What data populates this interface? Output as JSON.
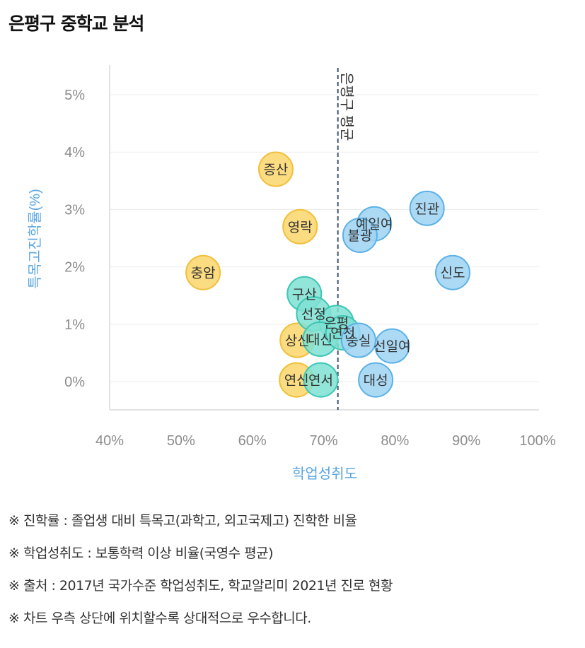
{
  "title": "은평구 중학교 분석",
  "chart_data": {
    "type": "scatter",
    "xlabel": "학업성취도",
    "ylabel": "특목고진학률(%)",
    "xlim": [
      0.4,
      1.0
    ],
    "ylim": [
      -0.005,
      0.05
    ],
    "xticks": [
      "40%",
      "50%",
      "60%",
      "70%",
      "80%",
      "90%",
      "100%"
    ],
    "yticks": [
      "0%",
      "1%",
      "2%",
      "3%",
      "4%",
      "5%"
    ],
    "reference_line": {
      "x": 0.72,
      "label": "은평구 평균"
    },
    "groups": [
      {
        "name": "yellow",
        "color": "#fbd66b",
        "stroke": "#f1bf3a"
      },
      {
        "name": "teal",
        "color": "#7fe0d2",
        "stroke": "#3cc6b5"
      },
      {
        "name": "blue",
        "color": "#9dd3f3",
        "stroke": "#5bb1e6"
      }
    ],
    "points": [
      {
        "name": "증산",
        "x": 0.633,
        "y": 0.037,
        "group": "yellow"
      },
      {
        "name": "영락",
        "x": 0.667,
        "y": 0.027,
        "group": "yellow"
      },
      {
        "name": "충암",
        "x": 0.531,
        "y": 0.019,
        "group": "yellow"
      },
      {
        "name": "상신",
        "x": 0.663,
        "y": 0.0072,
        "group": "yellow"
      },
      {
        "name": "연신",
        "x": 0.662,
        "y": 0.0003,
        "group": "yellow"
      },
      {
        "name": "구산",
        "x": 0.673,
        "y": 0.0153,
        "group": "teal"
      },
      {
        "name": "선정",
        "x": 0.686,
        "y": 0.0118,
        "group": "teal"
      },
      {
        "name": "은평",
        "x": 0.718,
        "y": 0.0103,
        "group": "teal"
      },
      {
        "name": "대신",
        "x": 0.695,
        "y": 0.0074,
        "group": "teal"
      },
      {
        "name": "연천",
        "x": 0.727,
        "y": 0.0085,
        "group": "teal"
      },
      {
        "name": "연서",
        "x": 0.696,
        "y": 0.0003,
        "group": "teal"
      },
      {
        "name": "진관",
        "x": 0.845,
        "y": 0.0302,
        "group": "blue"
      },
      {
        "name": "예일여",
        "x": 0.771,
        "y": 0.0275,
        "group": "blue"
      },
      {
        "name": "불광",
        "x": 0.751,
        "y": 0.0255,
        "group": "blue"
      },
      {
        "name": "신도",
        "x": 0.881,
        "y": 0.019,
        "group": "blue"
      },
      {
        "name": "숭실",
        "x": 0.749,
        "y": 0.0072,
        "group": "blue"
      },
      {
        "name": "선일여",
        "x": 0.796,
        "y": 0.0062,
        "group": "blue"
      },
      {
        "name": "대성",
        "x": 0.773,
        "y": 0.0003,
        "group": "blue"
      }
    ]
  },
  "notes": [
    "※ 진학률 : 졸업생 대비 특목고(과학고, 외고국제고) 진학한 비율",
    "※ 학업성취도 : 보통학력 이상 비율(국영수 평균)",
    "※ 출처 : 2017년 국가수준 학업성취도, 학교알리미 2021년 진로 현황",
    "※ 차트 우측 상단에 위치할수록 상대적으로 우수합니다."
  ]
}
